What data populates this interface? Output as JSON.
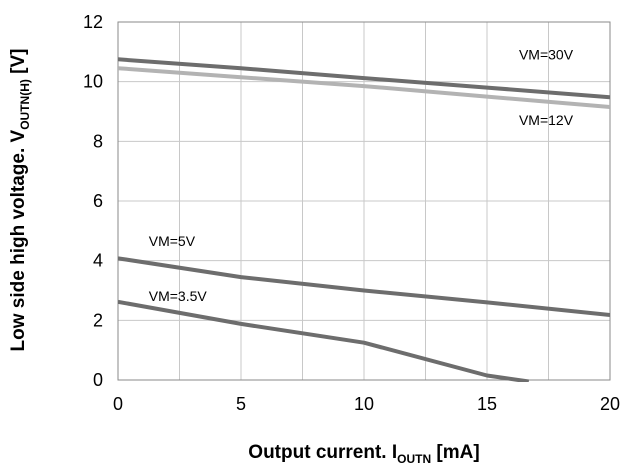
{
  "chart_data": {
    "type": "line",
    "xlabel": {
      "main": "Output current. I",
      "sub": "OUTN",
      "unit": " [mA]"
    },
    "ylabel": {
      "main": "Low side high voltage. V",
      "sub": "OUTN(H)",
      "unit": " [V]"
    },
    "xlim": [
      0,
      20
    ],
    "ylim": [
      0,
      12
    ],
    "xticks": [
      0,
      5,
      10,
      15,
      20
    ],
    "yticks": [
      0,
      2,
      4,
      6,
      8,
      10,
      12
    ],
    "grid": true,
    "series": [
      {
        "name": "VM=30V",
        "color": "#6d6d6d",
        "x": [
          0,
          5,
          10,
          15,
          20
        ],
        "y": [
          10.75,
          10.45,
          10.12,
          9.8,
          9.48
        ]
      },
      {
        "name": "VM=12V",
        "color": "#b3b3b3",
        "x": [
          0,
          5,
          10,
          15,
          20
        ],
        "y": [
          10.45,
          10.15,
          9.85,
          9.5,
          9.15
        ]
      },
      {
        "name": "VM=5V",
        "color": "#6d6d6d",
        "x": [
          0,
          5,
          10,
          15,
          20
        ],
        "y": [
          4.08,
          3.45,
          3.0,
          2.6,
          2.18
        ]
      },
      {
        "name": "VM=3.5V",
        "color": "#6d6d6d",
        "x": [
          0,
          5,
          10,
          15,
          16.7
        ],
        "y": [
          2.62,
          1.88,
          1.25,
          0.15,
          -0.05
        ]
      }
    ]
  }
}
